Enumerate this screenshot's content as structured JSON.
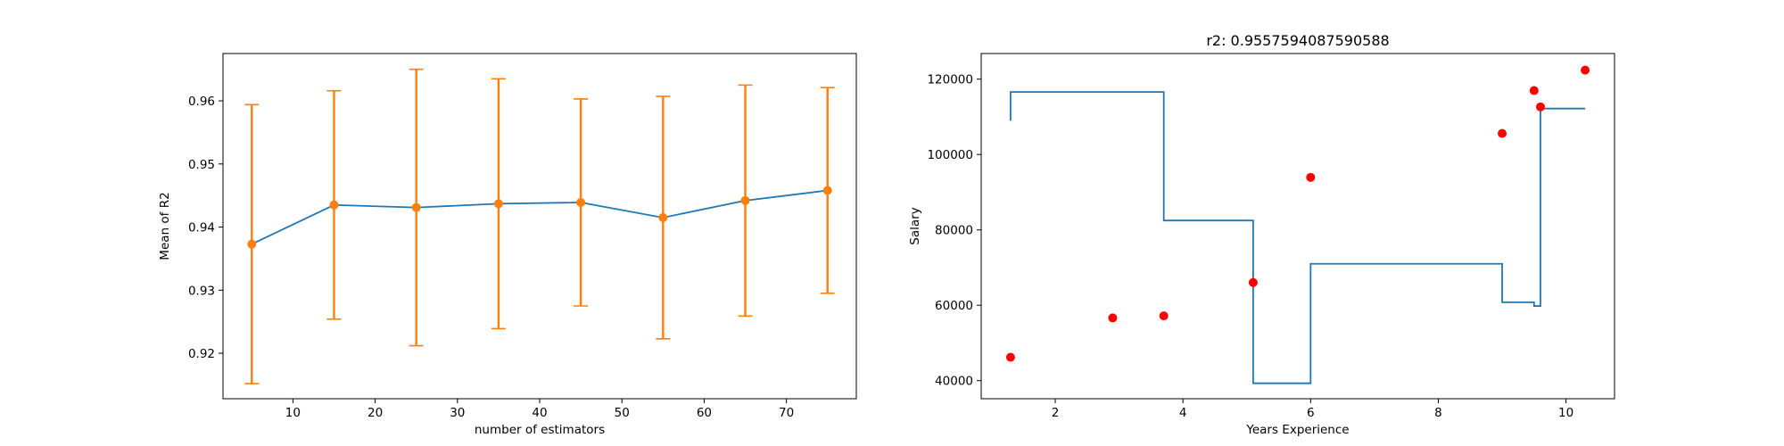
{
  "chart_data": [
    {
      "type": "line",
      "title": "",
      "xlabel": "number of estimators",
      "ylabel": "Mean of R2",
      "xlim": [
        1.5,
        78.5
      ],
      "ylim": [
        0.9128,
        0.9675
      ],
      "xticks": [
        10,
        20,
        30,
        40,
        50,
        60,
        70
      ],
      "yticks": [
        0.92,
        0.93,
        0.94,
        0.95,
        0.96
      ],
      "ytick_labels": [
        "0.92",
        "0.93",
        "0.94",
        "0.95",
        "0.96"
      ],
      "grid": false,
      "series": [
        {
          "x": [
            5,
            15,
            25,
            35,
            45,
            55,
            65,
            75
          ],
          "y": [
            0.9373,
            0.9435,
            0.9431,
            0.9437,
            0.9439,
            0.9415,
            0.9442,
            0.9458
          ],
          "yerr": [
            0.0221,
            0.0181,
            0.0219,
            0.0198,
            0.0164,
            0.0192,
            0.0183,
            0.0163
          ],
          "line_color": "#1f77b4",
          "marker_color": "#ff7f0e",
          "errorbar_color": "#ff7f0e"
        }
      ]
    },
    {
      "type": "scatter",
      "title": "r2: 0.9557594087590588",
      "xlabel": "Years Experience",
      "ylabel": "Salary",
      "xlim": [
        0.84,
        10.76
      ],
      "ylim": [
        35200,
        126800
      ],
      "xticks": [
        2,
        4,
        6,
        8,
        10
      ],
      "yticks": [
        40000,
        60000,
        80000,
        100000,
        120000
      ],
      "grid": false,
      "series": [
        {
          "kind": "scatter",
          "color": "#ff0000",
          "x": [
            1.3,
            2.9,
            3.7,
            5.1,
            6.0,
            9.0,
            9.5,
            9.6,
            10.3
          ],
          "y": [
            46205,
            56642,
            57189,
            66029,
            93940,
            105582,
            116969,
            112635,
            122391
          ]
        },
        {
          "kind": "step",
          "color": "#1f77b4",
          "x": [
            1.3,
            1.3,
            3.7,
            3.7,
            5.1,
            5.1,
            6.0,
            6.0,
            9.0,
            9.0,
            9.5,
            9.5,
            9.6,
            9.6,
            10.3
          ],
          "y": [
            109000,
            116600,
            116600,
            82500,
            82500,
            39300,
            39300,
            71000,
            71000,
            60800,
            60800,
            59800,
            59800,
            112200,
            112200
          ]
        }
      ]
    }
  ]
}
